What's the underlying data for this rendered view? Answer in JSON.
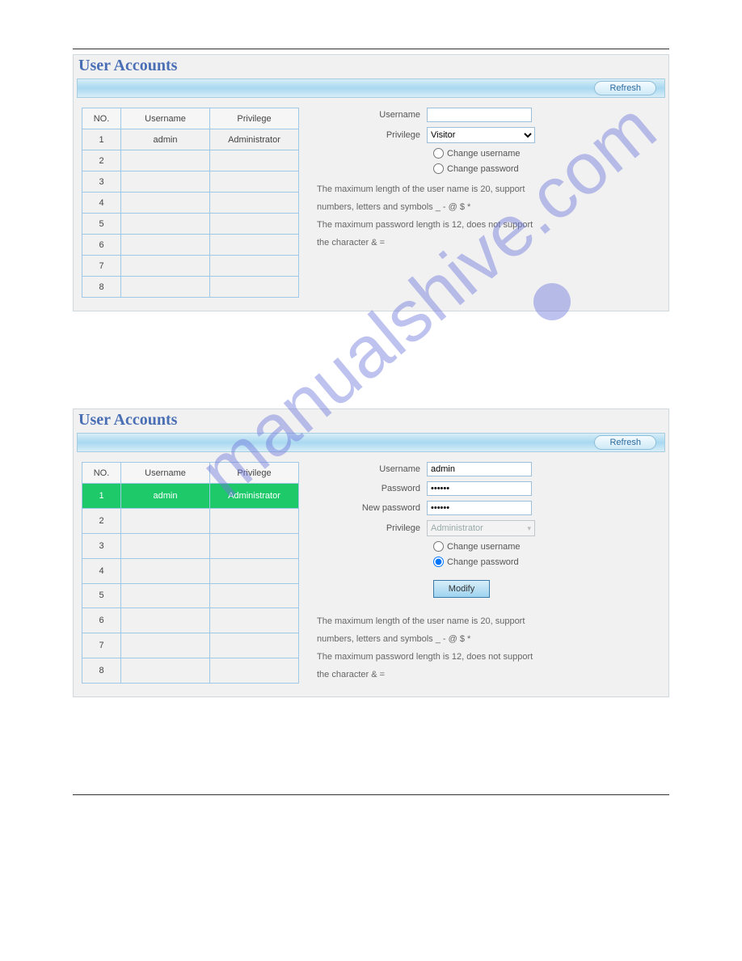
{
  "colors": {
    "title": "#4a6fb5",
    "bar_gradient_top": "#d8eef8",
    "bar_gradient_mid": "#a8d8f0",
    "table_border": "#9fc7e6",
    "selected_row": "#1ec96a",
    "watermark": "rgba(110,120,220,0.45)"
  },
  "watermark_text": "manualshive.com",
  "panel1": {
    "title": "User Accounts",
    "refresh": "Refresh",
    "table": {
      "columns": [
        "NO.",
        "Username",
        "Privilege"
      ],
      "rows": [
        [
          "1",
          "admin",
          "Administrator"
        ],
        [
          "2",
          "",
          ""
        ],
        [
          "3",
          "",
          ""
        ],
        [
          "4",
          "",
          ""
        ],
        [
          "5",
          "",
          ""
        ],
        [
          "6",
          "",
          ""
        ],
        [
          "7",
          "",
          ""
        ],
        [
          "8",
          "",
          ""
        ]
      ],
      "selected_row": -1
    },
    "form": {
      "labels": {
        "username": "Username",
        "privilege": "Privilege",
        "change_username": "Change username",
        "change_password": "Change password"
      },
      "values": {
        "username": "",
        "privilege_selected": "Visitor"
      },
      "radio_selected": ""
    },
    "help": [
      "The maximum length of the user name is 20, support",
      "numbers, letters and symbols _ - @ $ *",
      "The maximum password length is 12, does not support",
      "the character & ="
    ]
  },
  "panel2": {
    "title": "User Accounts",
    "refresh": "Refresh",
    "table": {
      "columns": [
        "NO.",
        "Username",
        "Privilege"
      ],
      "rows": [
        [
          "1",
          "admin",
          "Administrator"
        ],
        [
          "2",
          "",
          ""
        ],
        [
          "3",
          "",
          ""
        ],
        [
          "4",
          "",
          ""
        ],
        [
          "5",
          "",
          ""
        ],
        [
          "6",
          "",
          ""
        ],
        [
          "7",
          "",
          ""
        ],
        [
          "8",
          "",
          ""
        ]
      ],
      "selected_row": 0
    },
    "form": {
      "labels": {
        "username": "Username",
        "password": "Password",
        "new_password": "New password",
        "privilege": "Privilege",
        "change_username": "Change username",
        "change_password": "Change password",
        "modify": "Modify"
      },
      "values": {
        "username": "admin",
        "password": "••••••",
        "new_password": "••••••",
        "privilege_selected": "Administrator"
      },
      "radio_selected": "change_password"
    },
    "help": [
      "The maximum length of the user name is 20, support",
      "numbers, letters and symbols _ - @ $ *",
      "The maximum password length is 12, does not support",
      "the character & ="
    ]
  }
}
